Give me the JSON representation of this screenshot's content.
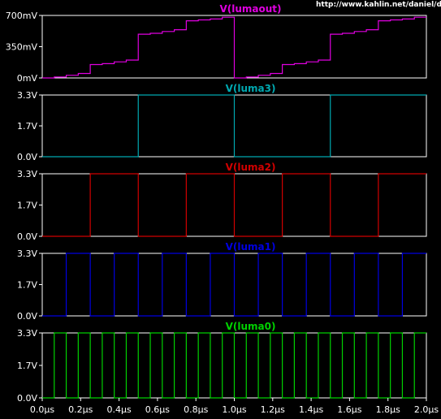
{
  "url_text": "http://www.kahlin.net/daniel/dtv/",
  "chart_data": {
    "type": "line",
    "x_unit": "µs",
    "xlim": [
      0,
      2.0
    ],
    "x_ticks": [
      "0.0µs",
      "0.2µs",
      "0.4µs",
      "0.6µs",
      "0.8µs",
      "1.0µs",
      "1.2µs",
      "1.4µs",
      "1.6µs",
      "1.8µs",
      "2.0µs"
    ],
    "panels": [
      {
        "title": "V(lumaout)",
        "color": "#e000e0",
        "ylim": [
          0,
          0.7
        ],
        "y_ticks": [
          "700mV",
          "350mV",
          "0mV"
        ],
        "series": {
          "kind": "step",
          "x": [
            0,
            0.0625,
            0.125,
            0.1875,
            0.25,
            0.3125,
            0.375,
            0.4375,
            0.5,
            0.5625,
            0.625,
            0.6875,
            0.75,
            0.8125,
            0.875,
            0.9375,
            1.0,
            1.0625,
            1.125,
            1.1875,
            1.25,
            1.3125,
            1.375,
            1.4375,
            1.5,
            1.5625,
            1.625,
            1.6875,
            1.75,
            1.8125,
            1.875,
            1.9375,
            2.0
          ],
          "y": [
            0,
            0.01,
            0.03,
            0.05,
            0.15,
            0.16,
            0.18,
            0.2,
            0.49,
            0.5,
            0.52,
            0.54,
            0.64,
            0.65,
            0.66,
            0.68,
            0,
            0.01,
            0.03,
            0.05,
            0.15,
            0.16,
            0.18,
            0.2,
            0.49,
            0.5,
            0.52,
            0.54,
            0.64,
            0.65,
            0.66,
            0.68
          ]
        }
      },
      {
        "title": "V(luma3)",
        "color": "#00a8b0",
        "ylim": [
          0,
          3.3
        ],
        "y_ticks": [
          "3.3V",
          "1.7V",
          "0.0V"
        ],
        "series": {
          "kind": "square",
          "period": 1.0,
          "high": 3.3,
          "low": 0.0
        }
      },
      {
        "title": "V(luma2)",
        "color": "#d00000",
        "ylim": [
          0,
          3.3
        ],
        "y_ticks": [
          "3.3V",
          "1.7V",
          "0.0V"
        ],
        "series": {
          "kind": "square",
          "period": 0.5,
          "high": 3.3,
          "low": 0.0
        }
      },
      {
        "title": "V(luma1)",
        "color": "#0000e0",
        "ylim": [
          0,
          3.3
        ],
        "y_ticks": [
          "3.3V",
          "1.7V",
          "0.0V"
        ],
        "series": {
          "kind": "square",
          "period": 0.25,
          "high": 3.3,
          "low": 0.0
        }
      },
      {
        "title": "V(luma0)",
        "color": "#00d000",
        "ylim": [
          0,
          3.3
        ],
        "y_ticks": [
          "3.3V",
          "1.7V",
          "0.0V"
        ],
        "series": {
          "kind": "square",
          "period": 0.125,
          "high": 3.3,
          "low": 0.0
        }
      }
    ]
  }
}
